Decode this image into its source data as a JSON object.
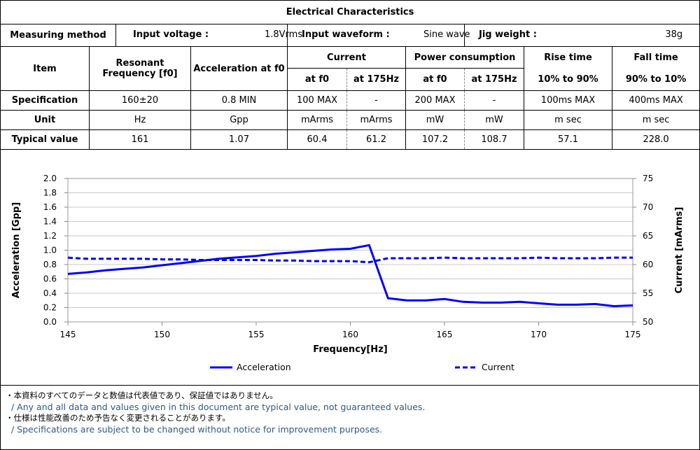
{
  "table": {
    "title": "Electrical Characteristics",
    "measuring_method_label": "Measuring method",
    "input_voltage_label": "Input voltage :",
    "input_voltage_value": "1.8Vrms",
    "input_waveform_label": "Input waveform :",
    "input_waveform_value": "Sine wave",
    "jig_weight_label": "Jig weight :",
    "jig_weight_value": "38g",
    "headers": {
      "item": "Item",
      "resonant_frequency": "Resonant Frequency [f0]",
      "acceleration": "Acceleration at f0",
      "current": "Current",
      "power": "Power consumption",
      "rise_time": "Rise time",
      "fall_time": "Fall time",
      "at_f0_1": "at f0",
      "at_175_1": "at 175Hz",
      "at_f0_2": "at f0",
      "at_175_2": "at 175Hz",
      "rise_range": "10% to 90%",
      "fall_range": "90% to 10%"
    },
    "rows": [
      {
        "label": "Specification",
        "cells": [
          "160±20",
          "0.8 MIN",
          "100 MAX",
          "-",
          "200 MAX",
          "-",
          "100ms MAX",
          "400ms MAX"
        ]
      },
      {
        "label": "Unit",
        "cells": [
          "Hz",
          "Gpp",
          "mArms",
          "mArms",
          "mW",
          "mW",
          "m sec",
          "m sec"
        ]
      },
      {
        "label": "Typical value",
        "cells": [
          "161",
          "1.07",
          "60.4",
          "61.2",
          "107.2",
          "108.7",
          "57.1",
          "228.0"
        ]
      }
    ]
  },
  "chart_data": {
    "type": "line",
    "xlabel": "Frequency[Hz]",
    "ylabel": "Acceleration [Gpp]",
    "y2label": "Current [mArms]",
    "xlim": [
      145,
      175
    ],
    "ylim": [
      0,
      2.0
    ],
    "y2lim": [
      50,
      75
    ],
    "xticks": [
      "145",
      "150",
      "155",
      "160",
      "165",
      "170",
      "175"
    ],
    "yticks": [
      "0.0",
      "0.2",
      "0.4",
      "0.6",
      "0.8",
      "1.0",
      "1.2",
      "1.4",
      "1.6",
      "1.8",
      "2.0"
    ],
    "y2ticks": [
      "50",
      "55",
      "60",
      "65",
      "70",
      "75"
    ],
    "grid": true,
    "legend_position": "bottom",
    "x": [
      145,
      146,
      147,
      148,
      149,
      150,
      151,
      152,
      153,
      154,
      155,
      156,
      157,
      158,
      159,
      160,
      161,
      162,
      163,
      164,
      165,
      166,
      167,
      168,
      169,
      170,
      171,
      172,
      173,
      174,
      175
    ],
    "series": [
      {
        "name": "Acceleration",
        "axis": "left",
        "style": "solid",
        "color": "#0000ff",
        "values": [
          0.67,
          0.69,
          0.72,
          0.74,
          0.76,
          0.79,
          0.82,
          0.85,
          0.88,
          0.9,
          0.92,
          0.95,
          0.97,
          0.99,
          1.01,
          1.02,
          1.07,
          0.33,
          0.3,
          0.3,
          0.32,
          0.28,
          0.27,
          0.27,
          0.28,
          0.26,
          0.24,
          0.24,
          0.25,
          0.22,
          0.23
        ]
      },
      {
        "name": "Current",
        "axis": "right",
        "style": "dashed",
        "color": "#0000ff",
        "values": [
          61.2,
          61.0,
          61.0,
          61.0,
          61.0,
          60.9,
          60.9,
          60.8,
          60.8,
          60.8,
          60.8,
          60.7,
          60.7,
          60.6,
          60.6,
          60.6,
          60.4,
          61.1,
          61.1,
          61.1,
          61.2,
          61.1,
          61.1,
          61.1,
          61.1,
          61.2,
          61.1,
          61.1,
          61.1,
          61.2,
          61.2
        ]
      }
    ]
  },
  "notes": {
    "jp1": "・本資料のすべてのデータと数値は代表値であり、保証値ではありません。",
    "en1": "/ Any and all data and values given in this document are typical value, not guaranteed values.",
    "jp2": "・仕様は性能改善のため予告なく変更されることがあります。",
    "en2": "/ Specifications are subject to be changed without notice for improvement purposes."
  }
}
